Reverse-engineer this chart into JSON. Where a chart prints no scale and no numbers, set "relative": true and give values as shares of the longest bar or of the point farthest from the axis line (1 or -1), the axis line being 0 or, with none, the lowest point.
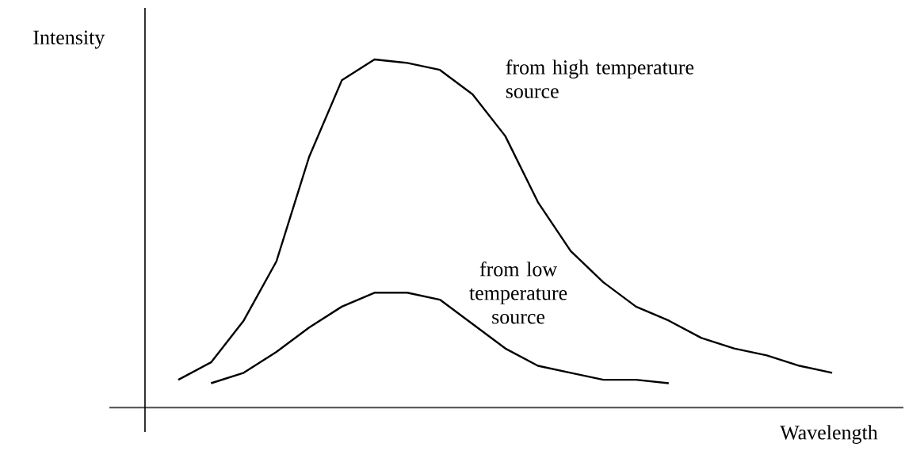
{
  "chart_data": {
    "type": "line",
    "relative": true,
    "xlabel": "Wavelength",
    "ylabel": "Intensity",
    "marker": "none",
    "line_style": "solid",
    "categories": [
      null,
      null,
      null,
      null,
      null,
      null,
      null,
      null,
      null,
      null,
      null,
      null,
      null,
      null,
      null,
      null,
      null,
      null,
      null,
      null,
      null
    ],
    "series": [
      {
        "name": "from high temperature source",
        "color": "#000000",
        "values": [
          0.08,
          0.13,
          0.25,
          0.42,
          0.72,
          0.94,
          1.0,
          0.99,
          0.97,
          0.9,
          0.78,
          0.59,
          0.45,
          0.36,
          0.29,
          0.25,
          0.2,
          0.17,
          0.15,
          0.12,
          0.1
        ]
      },
      {
        "name": "from low temperature source",
        "color": "#000000",
        "values": [
          null,
          0.07,
          0.1,
          0.16,
          0.23,
          0.29,
          0.33,
          0.33,
          0.31,
          0.24,
          0.17,
          0.12,
          0.1,
          0.08,
          0.08,
          0.07,
          null,
          null,
          null,
          null,
          null
        ]
      }
    ]
  }
}
